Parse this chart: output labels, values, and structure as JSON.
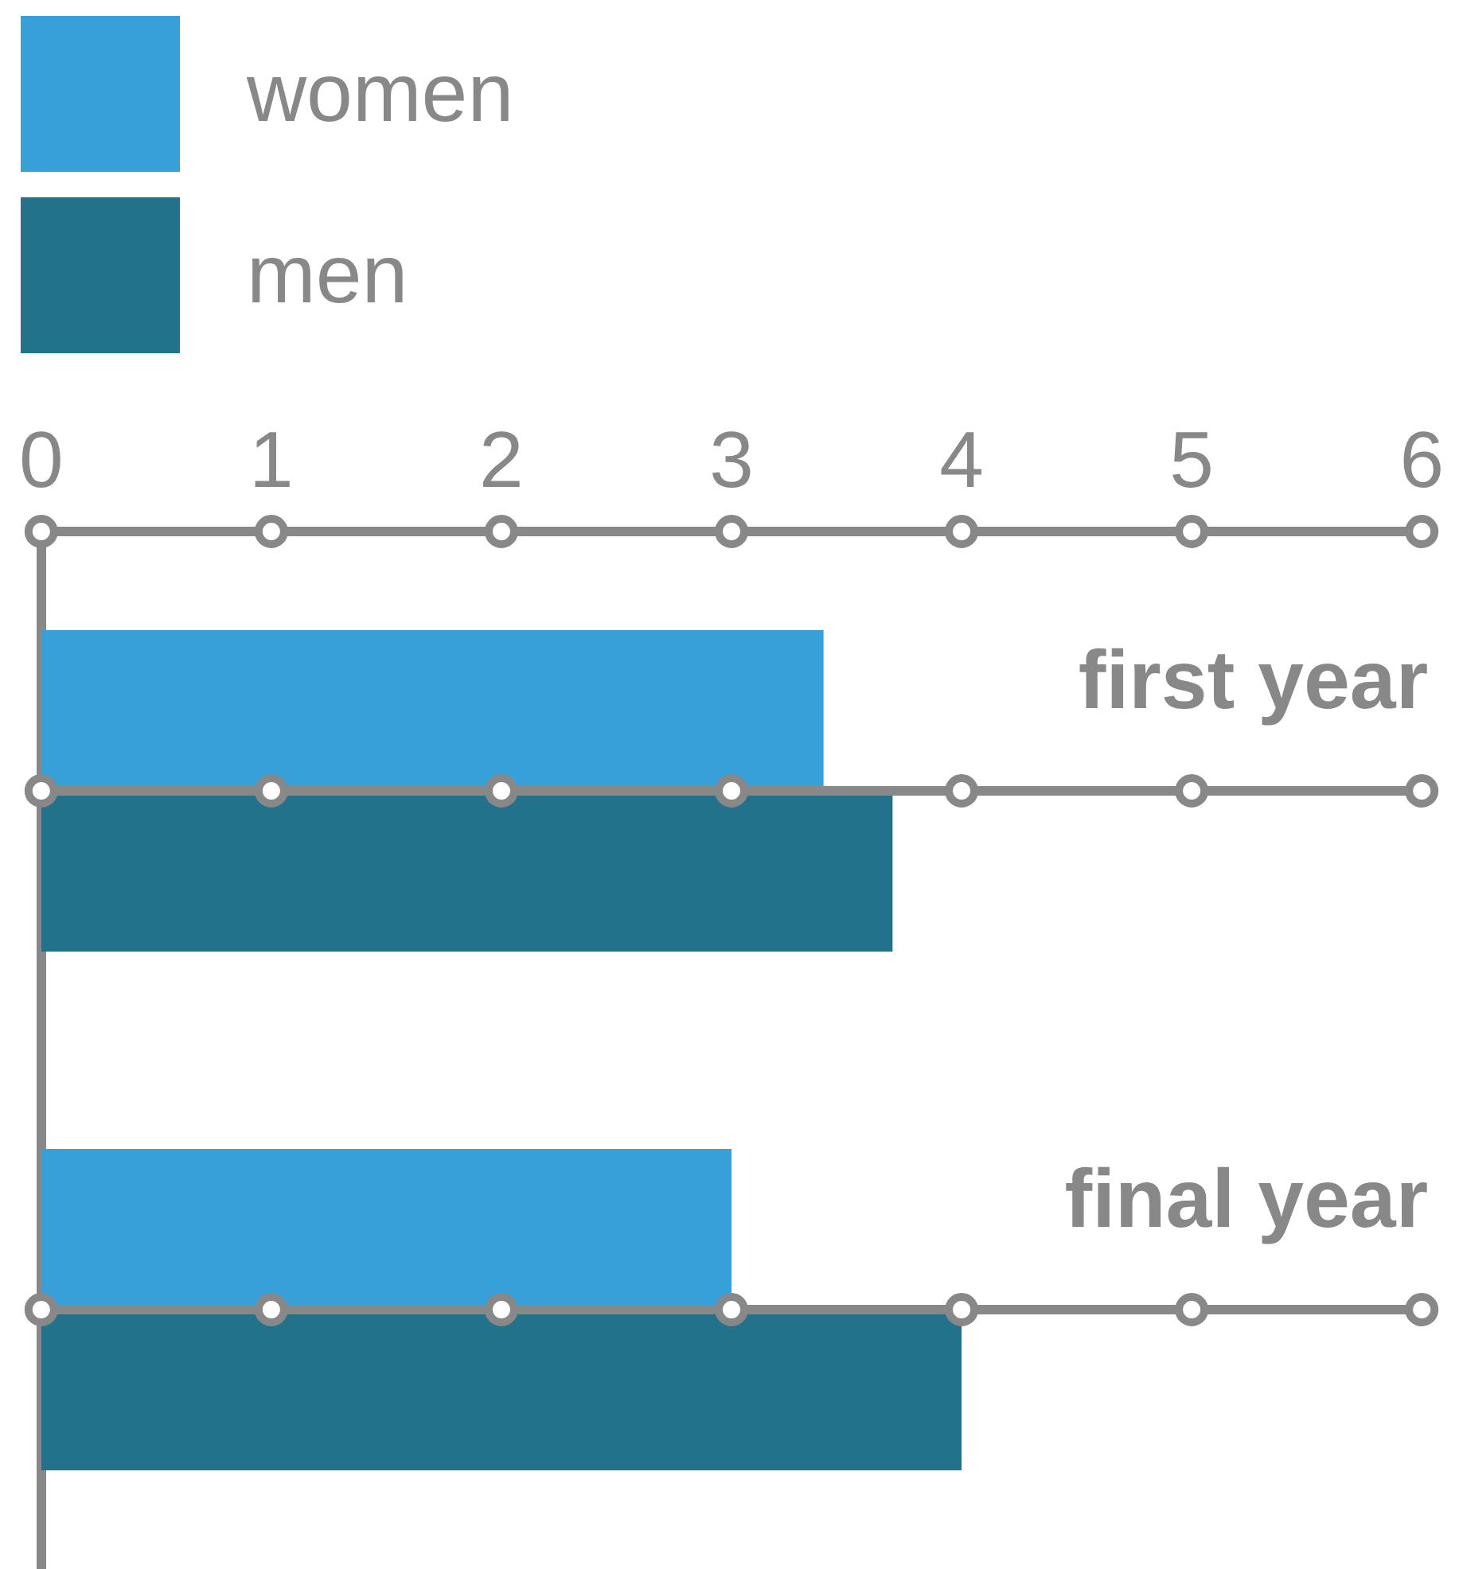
{
  "chart_data": {
    "type": "bar",
    "orientation": "horizontal",
    "categories": [
      "first year",
      "final year"
    ],
    "series": [
      {
        "name": "women",
        "color": "#38a0d8",
        "values": [
          3.4,
          3.0
        ]
      },
      {
        "name": "men",
        "color": "#23728c",
        "values": [
          3.7,
          4.0
        ]
      }
    ],
    "xlim": [
      0,
      6
    ],
    "xticks": [
      0,
      1,
      2,
      3,
      4,
      5,
      6
    ],
    "legend": "top left"
  }
}
